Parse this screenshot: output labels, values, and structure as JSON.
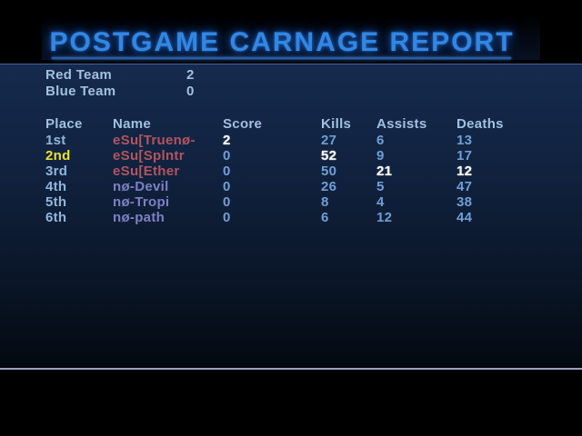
{
  "title": "POSTGAME CARNAGE REPORT",
  "team_summary": {
    "rows": [
      {
        "name": "Red Team",
        "score": "2"
      },
      {
        "name": "Blue Team",
        "score": "0"
      }
    ]
  },
  "table": {
    "headers": {
      "place": "Place",
      "name": "Name",
      "score": "Score",
      "kills": "Kills",
      "assists": "Assists",
      "deaths": "Deaths"
    },
    "rows": [
      {
        "place": "1st",
        "name": "eSu[Truenø-",
        "score": "2",
        "kills": "27",
        "assists": "6",
        "deaths": "13",
        "team": "red",
        "is_self": false,
        "best_in_column": [
          "score"
        ]
      },
      {
        "place": "2nd",
        "name": "eSu[Splntr",
        "score": "0",
        "kills": "52",
        "assists": "9",
        "deaths": "17",
        "team": "red",
        "is_self": true,
        "best_in_column": [
          "kills"
        ]
      },
      {
        "place": "3rd",
        "name": "eSu[Ether",
        "score": "0",
        "kills": "50",
        "assists": "21",
        "deaths": "12",
        "team": "red",
        "is_self": false,
        "best_in_column": [
          "assists",
          "deaths"
        ]
      },
      {
        "place": "4th",
        "name": "nø-Devil",
        "score": "0",
        "kills": "26",
        "assists": "5",
        "deaths": "47",
        "team": "blue",
        "is_self": false,
        "best_in_column": []
      },
      {
        "place": "5th",
        "name": "nø-Tropi",
        "score": "0",
        "kills": "8",
        "assists": "4",
        "deaths": "38",
        "team": "blue",
        "is_self": false,
        "best_in_column": []
      },
      {
        "place": "6th",
        "name": "nø-path",
        "score": "0",
        "kills": "6",
        "assists": "12",
        "deaths": "44",
        "team": "blue",
        "is_self": false,
        "best_in_column": []
      }
    ]
  },
  "colors": {
    "background": "#000000",
    "title_blue": "#3287e2",
    "panel_top": "#152a4d",
    "panel_bottom_line": "#9aa0bd",
    "label_text": "#a2c0e0",
    "stat_value": "#6f9fd6",
    "best_value_white": "#f4f4f4",
    "self_place_yellow": "#e8e233",
    "red_team_name": "#b1555f",
    "blue_team_name": "#7d80c4"
  }
}
